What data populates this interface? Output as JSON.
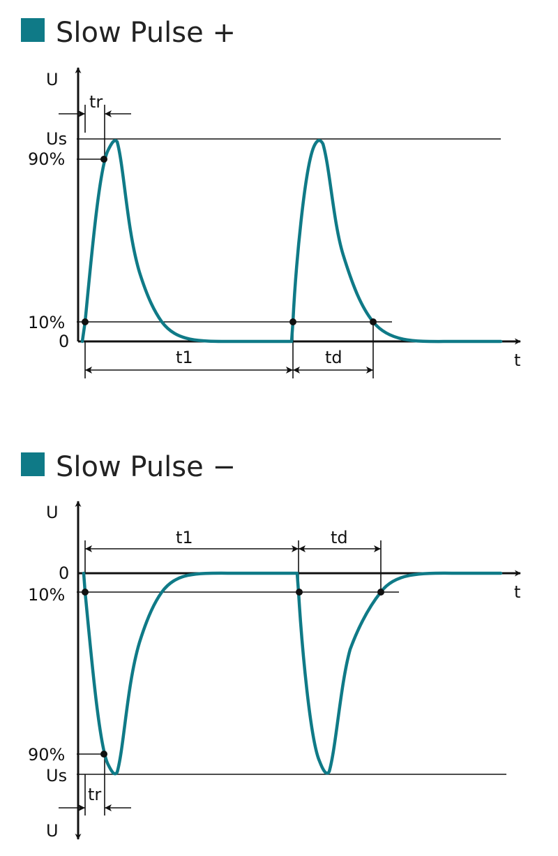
{
  "colors": {
    "accent": "#0f7a87",
    "line": "#111111"
  },
  "panels": [
    {
      "title": "Slow Pulse +",
      "labels": {
        "u_axis": "U",
        "t_axis": "t",
        "us": "Us",
        "p90": "90%",
        "p10": "10%",
        "zero": "0",
        "tr": "tr",
        "t1": "t1",
        "td": "td"
      }
    },
    {
      "title": "Slow Pulse −",
      "labels": {
        "u_axis_top": "U",
        "u_axis_bottom": "U",
        "t_axis": "t",
        "zero": "0",
        "p10": "10%",
        "p90": "90%",
        "us": "Us",
        "tr": "tr",
        "t1": "t1",
        "td": "td"
      }
    }
  ]
}
